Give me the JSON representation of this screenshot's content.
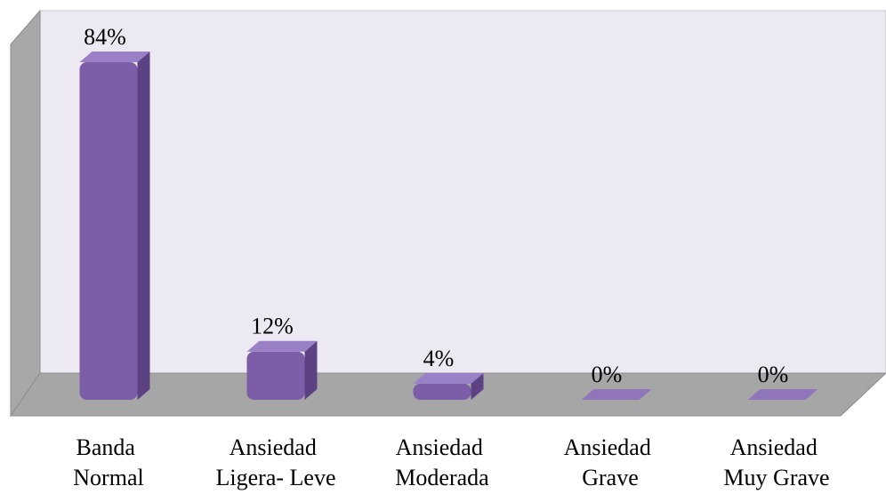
{
  "chart_data": {
    "type": "bar3d",
    "categories": [
      "Banda Normal",
      "Ansiedad Ligera- Leve",
      "Ansiedad Moderada",
      "Ansiedad Grave",
      "Ansiedad Muy Grave"
    ],
    "values": [
      84,
      12,
      4,
      0,
      0
    ],
    "value_labels": [
      "84%",
      "12%",
      "4%",
      "0%",
      "0%"
    ],
    "color": "#7b5ea7"
  }
}
